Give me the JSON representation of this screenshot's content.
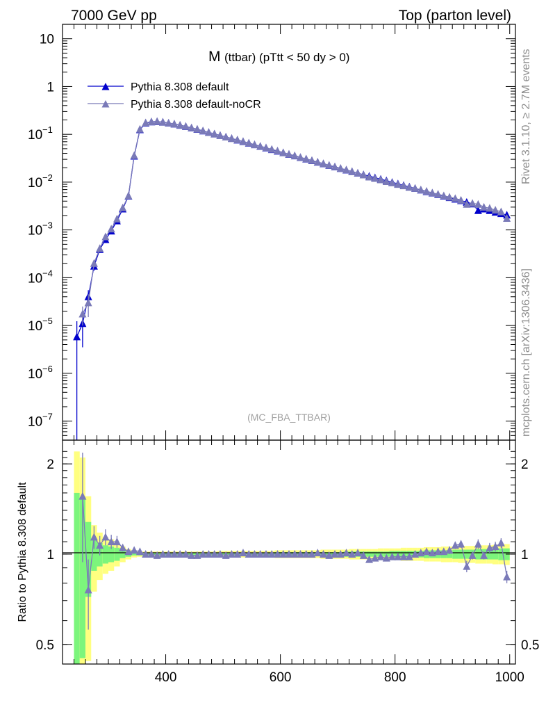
{
  "header": {
    "left": "7000 GeV pp",
    "right": "Top (parton level)"
  },
  "side_labels": {
    "rivet": "Rivet 3.1.10, ≥ 2.7M events",
    "mcplots": "mcplots.cern.ch [arXiv:1306.3436]"
  },
  "colors": {
    "default": "#0000cc",
    "nocr": "#7a7ab8",
    "band_inner": "#7cf57c",
    "band_outer": "#ffff80"
  },
  "chart_data": [
    {
      "type": "line",
      "title_main": "M",
      "title_rest": "(ttbar) (pTtt < 50 dy > 0)",
      "watermark": "(MC_FBA_TTBAR)",
      "yscale": "log",
      "xlim": [
        220,
        1010
      ],
      "ylim": [
        4e-08,
        20
      ],
      "y_ticks": [
        {
          "value": 10,
          "label": "10"
        },
        {
          "value": 1,
          "label": "1"
        },
        {
          "value": 0.1,
          "base": "10",
          "exp": "−1"
        },
        {
          "value": 0.01,
          "base": "10",
          "exp": "−2"
        },
        {
          "value": 0.001,
          "base": "10",
          "exp": "−3"
        },
        {
          "value": 0.0001,
          "base": "10",
          "exp": "−4"
        },
        {
          "value": 1e-05,
          "base": "10",
          "exp": "−5"
        },
        {
          "value": 1e-06,
          "base": "10",
          "exp": "−6"
        },
        {
          "value": 1e-07,
          "base": "10",
          "exp": "−7"
        }
      ],
      "legend_position": "top-left",
      "series": [
        {
          "name": "Pythia 8.308 default",
          "marker": "triangle"
        },
        {
          "name": "Pythia 8.308 default-noCR",
          "marker": "triangle"
        }
      ],
      "x": [
        245,
        255,
        265,
        275,
        285,
        295,
        305,
        315,
        325,
        335,
        345,
        355,
        365,
        375,
        385,
        395,
        405,
        415,
        425,
        435,
        445,
        455,
        465,
        475,
        485,
        495,
        505,
        515,
        525,
        535,
        545,
        555,
        565,
        575,
        585,
        595,
        605,
        615,
        625,
        635,
        645,
        655,
        665,
        675,
        685,
        695,
        705,
        715,
        725,
        735,
        745,
        755,
        765,
        775,
        785,
        795,
        805,
        815,
        825,
        835,
        845,
        855,
        865,
        875,
        885,
        895,
        905,
        915,
        925,
        935,
        945,
        955,
        965,
        975,
        985,
        995
      ],
      "default": [
        5.8e-06,
        1.1e-05,
        4e-05,
        0.000175,
        0.00039,
        0.00063,
        0.00095,
        0.00155,
        0.00275,
        0.0051,
        0.035,
        0.125,
        0.172,
        0.182,
        0.185,
        0.18,
        0.172,
        0.164,
        0.155,
        0.146,
        0.136,
        0.127,
        0.118,
        0.11,
        0.102,
        0.095,
        0.088,
        0.082,
        0.076,
        0.0705,
        0.0655,
        0.0605,
        0.056,
        0.052,
        0.048,
        0.0445,
        0.0412,
        0.0382,
        0.0354,
        0.0328,
        0.0304,
        0.0282,
        0.0261,
        0.0242,
        0.0224,
        0.0208,
        0.0193,
        0.0179,
        0.0166,
        0.0154,
        0.0143,
        0.0133,
        0.0124,
        0.0115,
        0.0107,
        0.0099,
        0.0092,
        0.00855,
        0.00795,
        0.0074,
        0.00685,
        0.00635,
        0.0059,
        0.0055,
        0.0051,
        0.00475,
        0.0044,
        0.0041,
        0.0038,
        0.0035,
        0.00255,
        0.00275,
        0.00255,
        0.00235,
        0.0022,
        0.00205
      ],
      "default_err_low": [
        5.8e-06,
        7.5e-06,
        1.5e-05,
        3.5e-05,
        5e-05,
        6e-05,
        7e-05,
        0.0001,
        0.00015,
        0.00025,
        0.001,
        0.002,
        0.002,
        0.002,
        0.002,
        0.002,
        0.002,
        0.002,
        0.002,
        0.002,
        0.0015,
        0.0015,
        0.0015,
        0.0015,
        0.0015,
        0.001,
        0.001,
        0.001,
        0.001,
        0.001,
        0.001,
        0.001,
        0.001,
        0.001,
        0.001,
        0.0005,
        0.0005,
        0.0005,
        0.0005,
        0.0005,
        0.0005,
        0.0005,
        0.0005,
        0.0005,
        0.0005,
        0.0004,
        0.0004,
        0.0004,
        0.0004,
        0.0004,
        0.0004,
        0.0003,
        0.0003,
        0.0003,
        0.0003,
        0.0003,
        0.0003,
        0.0003,
        0.0003,
        0.0003,
        0.0002,
        0.0002,
        0.0002,
        0.0002,
        0.0002,
        0.0002,
        0.0002,
        0.0002,
        0.0002,
        0.0002,
        0.0002,
        0.0002,
        0.0002,
        0.0002,
        0.0002,
        0.0002
      ],
      "default_err_high": [
        6.5e-06,
        7.5e-06,
        1.5e-05,
        3.5e-05,
        5e-05,
        6e-05,
        7e-05,
        0.0001,
        0.00015,
        0.00025,
        0.001,
        0.002,
        0.002,
        0.002,
        0.002,
        0.002,
        0.002,
        0.002,
        0.002,
        0.002,
        0.0015,
        0.0015,
        0.0015,
        0.0015,
        0.0015,
        0.001,
        0.001,
        0.001,
        0.001,
        0.001,
        0.001,
        0.001,
        0.001,
        0.001,
        0.001,
        0.0005,
        0.0005,
        0.0005,
        0.0005,
        0.0005,
        0.0005,
        0.0005,
        0.0005,
        0.0005,
        0.0005,
        0.0004,
        0.0004,
        0.0004,
        0.0004,
        0.0004,
        0.0004,
        0.0003,
        0.0003,
        0.0003,
        0.0003,
        0.0003,
        0.0003,
        0.0003,
        0.0003,
        0.0003,
        0.0002,
        0.0002,
        0.0002,
        0.0002,
        0.0002,
        0.0002,
        0.0002,
        0.0002,
        0.0002,
        0.0002,
        0.0002,
        0.0002,
        0.0002,
        0.0002,
        0.0002,
        0.0002
      ],
      "nocr": [
        null,
        1.75e-05,
        3e-05,
        0.0002,
        0.00041,
        0.00072,
        0.00105,
        0.0017,
        0.0029,
        0.0052,
        0.036,
        0.128,
        0.175,
        0.183,
        0.186,
        0.18,
        0.173,
        0.165,
        0.156,
        0.147,
        0.137,
        0.128,
        0.119,
        0.11,
        0.102,
        0.095,
        0.088,
        0.082,
        0.0765,
        0.071,
        0.066,
        0.061,
        0.0565,
        0.0525,
        0.0485,
        0.045,
        0.0415,
        0.0385,
        0.0357,
        0.033,
        0.0306,
        0.0284,
        0.0263,
        0.0244,
        0.0226,
        0.021,
        0.0195,
        0.0181,
        0.0167,
        0.0155,
        0.0142,
        0.0128,
        0.012,
        0.0112,
        0.0103,
        0.0097,
        0.009,
        0.0084,
        0.0078,
        0.0074,
        0.0069,
        0.00645,
        0.00595,
        0.0056,
        0.0052,
        0.00485,
        0.00455,
        0.0042,
        0.00345,
        0.0036,
        0.00345,
        0.003,
        0.00285,
        0.0026,
        0.0024,
        0.00175
      ]
    },
    {
      "type": "line",
      "ylabel": "Ratio to Pythia 8.308 default",
      "yscale": "log",
      "xlim": [
        220,
        1010
      ],
      "ylim": [
        0.43,
        2.4
      ],
      "x_ticks": [
        400,
        600,
        800,
        1000
      ],
      "y_ticks": [
        0.5,
        1,
        2
      ],
      "x": [
        245,
        255,
        265,
        275,
        285,
        295,
        305,
        315,
        325,
        335,
        345,
        355,
        365,
        375,
        385,
        395,
        405,
        415,
        425,
        435,
        445,
        455,
        465,
        475,
        485,
        495,
        505,
        515,
        525,
        535,
        545,
        555,
        565,
        575,
        585,
        595,
        605,
        615,
        625,
        635,
        645,
        655,
        665,
        675,
        685,
        695,
        705,
        715,
        725,
        735,
        745,
        755,
        765,
        775,
        785,
        795,
        805,
        815,
        825,
        835,
        845,
        855,
        865,
        875,
        885,
        895,
        905,
        915,
        925,
        935,
        945,
        955,
        965,
        975,
        985,
        995
      ],
      "ratio": [
        null,
        1.56,
        0.76,
        1.14,
        1.07,
        1.14,
        1.1,
        1.1,
        1.05,
        1.02,
        1.03,
        1.02,
        1.0,
        1.0,
        0.99,
        1.0,
        1.0,
        1.0,
        1.0,
        1.0,
        0.99,
        0.99,
        1.0,
        1.0,
        1.0,
        1.0,
        0.99,
        1.0,
        1.0,
        1.01,
        1.0,
        1.0,
        1.0,
        1.0,
        1.0,
        1.0,
        1.0,
        1.0,
        1.0,
        1.0,
        1.0,
        1.0,
        1.01,
        1.0,
        0.99,
        1.0,
        1.0,
        1.01,
        1.0,
        1.01,
        0.99,
        0.96,
        0.97,
        0.98,
        0.97,
        0.98,
        0.98,
        0.98,
        0.98,
        1.0,
        1.01,
        1.02,
        1.01,
        1.02,
        1.02,
        1.03,
        1.07,
        1.08,
        0.91,
        0.99,
        1.08,
        0.99,
        1.05,
        1.06,
        1.09,
        0.84
      ],
      "ratio_err": [
        0,
        0.62,
        0.2,
        0.1,
        0.08,
        0.07,
        0.06,
        0.05,
        0.03,
        0.02,
        0.02,
        0.01,
        0.01,
        0.01,
        0.01,
        0.01,
        0.01,
        0.01,
        0.01,
        0.01,
        0.01,
        0.01,
        0.01,
        0.01,
        0.01,
        0.01,
        0.01,
        0.01,
        0.01,
        0.01,
        0.01,
        0.01,
        0.01,
        0.01,
        0.01,
        0.01,
        0.01,
        0.01,
        0.01,
        0.01,
        0.01,
        0.01,
        0.01,
        0.01,
        0.01,
        0.01,
        0.01,
        0.01,
        0.01,
        0.01,
        0.01,
        0.02,
        0.02,
        0.02,
        0.02,
        0.02,
        0.02,
        0.02,
        0.02,
        0.02,
        0.02,
        0.02,
        0.02,
        0.02,
        0.02,
        0.03,
        0.03,
        0.03,
        0.04,
        0.03,
        0.04,
        0.03,
        0.04,
        0.04,
        0.04,
        0.04
      ],
      "band_inner": [
        0.6,
        0.55,
        0.28,
        0.12,
        0.09,
        0.07,
        0.06,
        0.05,
        0.03,
        0.02,
        0.01,
        0.01,
        0.01,
        0.01,
        0.01,
        0.01,
        0.01,
        0.01,
        0.01,
        0.01,
        0.01,
        0.01,
        0.01,
        0.01,
        0.01,
        0.01,
        0.01,
        0.01,
        0.01,
        0.01,
        0.01,
        0.01,
        0.01,
        0.01,
        0.01,
        0.015,
        0.015,
        0.015,
        0.015,
        0.015,
        0.015,
        0.015,
        0.015,
        0.015,
        0.015,
        0.015,
        0.015,
        0.02,
        0.02,
        0.02,
        0.02,
        0.02,
        0.02,
        0.02,
        0.02,
        0.025,
        0.025,
        0.025,
        0.025,
        0.025,
        0.025,
        0.03,
        0.03,
        0.03,
        0.03,
        0.03,
        0.035,
        0.035,
        0.035,
        0.035,
        0.04,
        0.04,
        0.04,
        0.04,
        0.045,
        0.045
      ],
      "band_outer": [
        1.2,
        1.1,
        0.56,
        0.25,
        0.18,
        0.14,
        0.12,
        0.09,
        0.06,
        0.04,
        0.025,
        0.02,
        0.02,
        0.02,
        0.02,
        0.02,
        0.02,
        0.02,
        0.02,
        0.02,
        0.02,
        0.02,
        0.02,
        0.02,
        0.02,
        0.025,
        0.025,
        0.025,
        0.025,
        0.025,
        0.025,
        0.025,
        0.025,
        0.025,
        0.025,
        0.03,
        0.03,
        0.03,
        0.03,
        0.03,
        0.03,
        0.03,
        0.03,
        0.035,
        0.035,
        0.035,
        0.035,
        0.035,
        0.04,
        0.04,
        0.04,
        0.04,
        0.04,
        0.045,
        0.045,
        0.045,
        0.045,
        0.05,
        0.05,
        0.05,
        0.05,
        0.055,
        0.055,
        0.055,
        0.06,
        0.06,
        0.06,
        0.065,
        0.065,
        0.065,
        0.07,
        0.07,
        0.07,
        0.075,
        0.075,
        0.08
      ]
    }
  ]
}
